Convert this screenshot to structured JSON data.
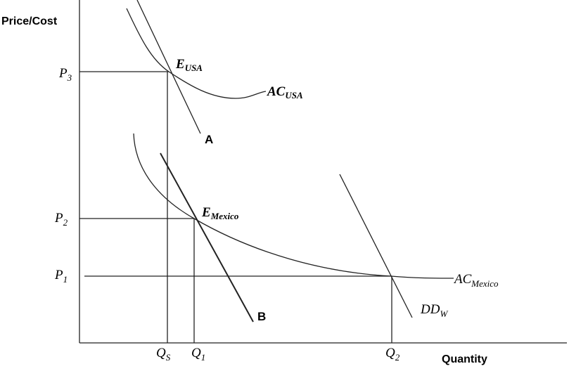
{
  "axes": {
    "y_label": "Price/Cost",
    "x_label": "Quantity"
  },
  "price_labels": [
    {
      "main": "P",
      "sub": "3"
    },
    {
      "main": "P",
      "sub": "2"
    },
    {
      "main": "P",
      "sub": "1"
    }
  ],
  "quantity_labels": [
    {
      "main": "Q",
      "sub": "S"
    },
    {
      "main": "Q",
      "sub": "1"
    },
    {
      "main": "Q",
      "sub": "2"
    }
  ],
  "curve_labels": [
    {
      "main": "AC",
      "sub": "USA"
    },
    {
      "main": "AC",
      "sub": "Mexico"
    },
    {
      "main": "DD",
      "sub": "W"
    }
  ],
  "point_labels": [
    {
      "main": "E",
      "sub": "USA"
    },
    {
      "main": "E",
      "sub": "Mexico"
    }
  ],
  "line_labels": [
    "A",
    "B"
  ]
}
